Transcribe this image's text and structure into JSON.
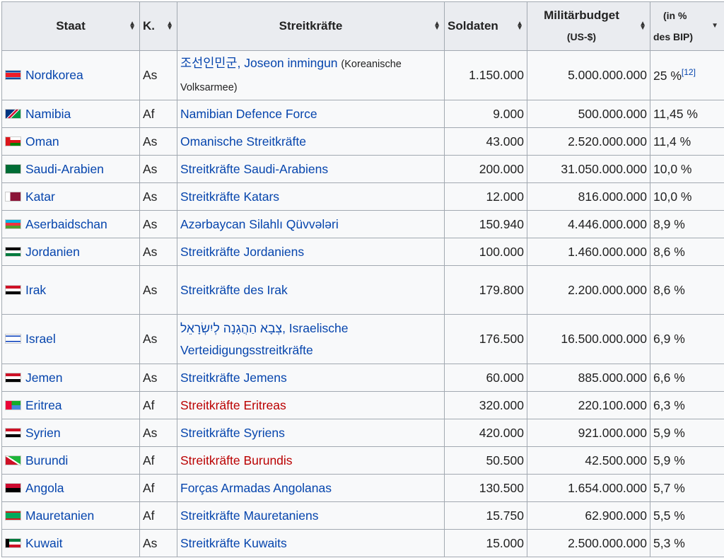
{
  "headers": {
    "staat": "Staat",
    "k": "K.",
    "streitkraefte": "Streitkräfte",
    "soldaten": "Soldaten",
    "budget1": "Militärbudget",
    "budget2": "(US-$)",
    "bip1": "(in %",
    "bip2": "des BIP)"
  },
  "rows": [
    {
      "staat": "Nordkorea",
      "k": "As",
      "sk": "조선인민군, Joseon inmingun",
      "sk_note": "(Koreanische Volksarmee)",
      "soldaten": "1.150.000",
      "budget": "5.000.000.000",
      "bip": "25 %",
      "ref": "[12]",
      "flag": "linear-gradient(#024fa2 0 20%,#fff 20% 27%,#ed1c27 27% 73%,#fff 73% 80%,#024fa2 80%)"
    },
    {
      "staat": "Namibia",
      "k": "Af",
      "sk": "Namibian Defence Force",
      "soldaten": "9.000",
      "budget": "500.000.000",
      "bip": "11,45 %",
      "flag": "linear-gradient(135deg,#003580 0 40%,#fff 40% 44%,#d21034 44% 56%,#fff 56% 60%,#009543 60%)"
    },
    {
      "staat": "Oman",
      "k": "As",
      "sk": "Omanische Streitkräfte",
      "soldaten": "43.000",
      "budget": "2.520.000.000",
      "bip": "11,4 %",
      "flag": "linear-gradient(90deg,#db161b 0 30%,transparent 30%),linear-gradient(#fff 0 33%,#db161b 33% 67%,#008000 67%)"
    },
    {
      "staat": "Saudi-Arabien",
      "k": "As",
      "sk": "Streitkräfte Saudi-Arabiens",
      "soldaten": "200.000",
      "budget": "31.050.000.000",
      "bip": "10,0 %",
      "flag": "linear-gradient(#006c35,#006c35)"
    },
    {
      "staat": "Katar",
      "k": "As",
      "sk": "Streitkräfte Katars",
      "soldaten": "12.000",
      "budget": "816.000.000",
      "bip": "10,0 %",
      "flag": "linear-gradient(90deg,#fff 0 30%,#8a1538 30%)"
    },
    {
      "staat": "Aserbaidschan",
      "k": "As",
      "sk": "Azərbaycan Silahlı Qüvvələri",
      "soldaten": "150.940",
      "budget": "4.446.000.000",
      "bip": "8,9 %",
      "flag": "linear-gradient(#00b5e2 0 33%,#ef3340 33% 67%,#509e2f 67%)"
    },
    {
      "staat": "Jordanien",
      "k": "As",
      "sk": "Streitkräfte Jordaniens",
      "soldaten": "100.000",
      "budget": "1.460.000.000",
      "bip": "8,6 %",
      "flag": "linear-gradient(#000 0 33%,#fff 33% 67%,#007a3d 67%)"
    },
    {
      "staat": "Irak",
      "k": "As",
      "sk": "Streitkräfte des Irak",
      "soldaten": "179.800",
      "budget": "2.200.000.000",
      "bip": "8,6 %",
      "flag": "linear-gradient(#ce1126 0 33%,#fff 33% 67%,#000 67%)"
    },
    {
      "staat": "Israel",
      "k": "As",
      "sk": "צְבָא הַהֲגָנָה לְיִשְׂרָאֵל, Israelische Verteidigungsstreitkräfte",
      "soldaten": "176.500",
      "budget": "16.500.000.000",
      "bip": "6,9 %",
      "flag": "linear-gradient(#fff 0 12%,#0038b8 12% 25%,#fff 25% 75%,#0038b8 75% 88%,#fff 88%)"
    },
    {
      "staat": "Jemen",
      "k": "As",
      "sk": "Streitkräfte Jemens",
      "soldaten": "60.000",
      "budget": "885.000.000",
      "bip": "6,6 %",
      "flag": "linear-gradient(#ce1126 0 33%,#fff 33% 67%,#000 67%)"
    },
    {
      "staat": "Eritrea",
      "k": "Af",
      "sk": "Streitkräfte Eritreas",
      "red": true,
      "soldaten": "320.000",
      "budget": "220.100.000",
      "bip": "6,3 %",
      "flag": "linear-gradient(90deg,#ea0437 0 40%,transparent 40%),linear-gradient(#12ad2b 0 50%,#4189dd 50%)"
    },
    {
      "staat": "Syrien",
      "k": "As",
      "sk": "Streitkräfte Syriens",
      "soldaten": "420.000",
      "budget": "921.000.000",
      "bip": "5,9 %",
      "flag": "linear-gradient(#ce1126 0 33%,#fff 33% 67%,#000 67%)"
    },
    {
      "staat": "Burundi",
      "k": "Af",
      "sk": "Streitkräfte Burundis",
      "red": true,
      "soldaten": "50.500",
      "budget": "42.500.000",
      "bip": "5,9 %",
      "flag": "linear-gradient(33deg,#ce1126 0 45%,#fff 45% 55%,#1eb53a 55%)"
    },
    {
      "staat": "Angola",
      "k": "Af",
      "sk": "Forças Armadas Angolanas",
      "soldaten": "130.500",
      "budget": "1.654.000.000",
      "bip": "5,7 %",
      "flag": "linear-gradient(#cc092f 0 50%,#000 50%)"
    },
    {
      "staat": "Mauretanien",
      "k": "Af",
      "sk": "Streitkräfte Mauretaniens",
      "soldaten": "15.750",
      "budget": "62.900.000",
      "bip": "5,5 %",
      "flag": "linear-gradient(#d01c1f 0 18%,#00a95c 18% 82%,#d01c1f 82%)"
    },
    {
      "staat": "Kuwait",
      "k": "As",
      "sk": "Streitkräfte Kuwaits",
      "soldaten": "15.000",
      "budget": "2.500.000.000",
      "bip": "5,3 %",
      "flag": "linear-gradient(90deg,#000 0 25%,transparent 25%),linear-gradient(#007a3d 0 33%,#fff 33% 67%,#ce1126 67%)"
    }
  ]
}
